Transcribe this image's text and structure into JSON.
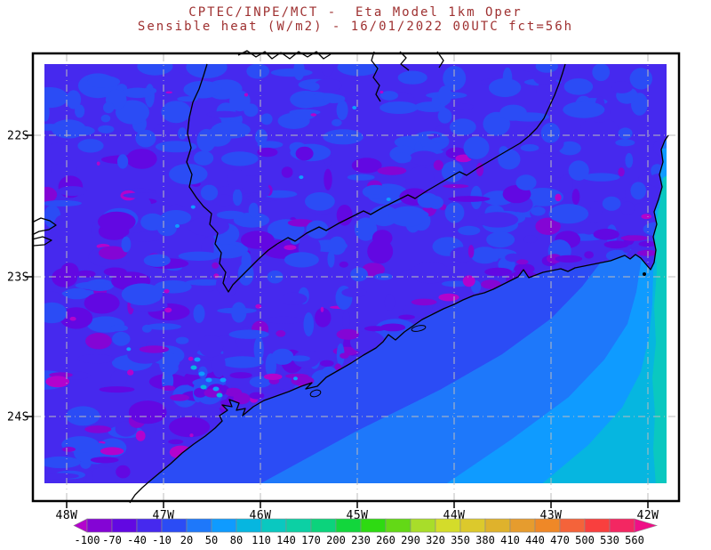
{
  "page": {
    "background": "#ffffff"
  },
  "title": {
    "line1": "CPTEC/INPE/MCT -  Eta Model 1km Oper",
    "line2": "Sensible heat (W/m2) - 16/01/2022 00UTC fct=56h",
    "color": "#9e3030"
  },
  "chart_data": {
    "type": "heatmap",
    "title": "CPTEC/INPE/MCT -  Eta Model 1km Oper",
    "subtitle": "Sensible heat (W/m2) - 16/01/2022 00UTC fct=56h",
    "institution": "CPTEC/INPE/MCT",
    "model": "Eta Model 1km Oper",
    "variable": "Sensible heat",
    "unit": "W/m2",
    "valid_time": "16/01/2022 00UTC",
    "forecast": "fct=56h",
    "projection": "lat-lon map of southeastern Brazil coast",
    "x_tick_labels": [
      "48W",
      "47W",
      "46W",
      "45W",
      "44W",
      "43W",
      "42W"
    ],
    "y_tick_labels": [
      "22S",
      "23S",
      "24S"
    ],
    "grid_style": "gray dash-dot graticule at 1 degree spacing",
    "colorbar": {
      "orientation": "horizontal",
      "levels": [
        -100,
        -70,
        -40,
        -10,
        20,
        50,
        80,
        110,
        140,
        170,
        200,
        230,
        260,
        290,
        320,
        350,
        380,
        410,
        440,
        470,
        500,
        530,
        560
      ],
      "labels": [
        "-100",
        "-70",
        "-40",
        "-10",
        "20",
        "50",
        "80",
        "110",
        "140",
        "170",
        "200",
        "230",
        "260",
        "290",
        "320",
        "350",
        "380",
        "410",
        "440",
        "470",
        "500",
        "530",
        "560"
      ],
      "colors": [
        "#b303cd",
        "#8405d5",
        "#6208e2",
        "#4629ee",
        "#2b4cf5",
        "#1e78fa",
        "#0f9bff",
        "#06b6e0",
        "#0ac8c0",
        "#0cd0a4",
        "#0cd37c",
        "#12d63c",
        "#2eda12",
        "#63d916",
        "#a8dd2a",
        "#d4dc2a",
        "#dcc92c",
        "#dfb22c",
        "#e69c2e",
        "#ef8827",
        "#f4633a",
        "#f93f3e",
        "#f32762",
        "#ef0f87"
      ],
      "below_min_arrow": true,
      "above_max_arrow": true
    },
    "field_regions": [
      {
        "region": "land (most of domain, nighttime)",
        "value_wm2": "-40 to 20"
      },
      {
        "region": "coastal mountain patches",
        "value_wm2": "-100 to -40"
      },
      {
        "region": "scattered dark magenta speckles",
        "value_wm2": "below -100"
      },
      {
        "region": "small bright speckles near Sao Paulo city",
        "value_wm2": "50 to 110"
      },
      {
        "region": "nearshore ocean",
        "value_wm2": "-10 to 20"
      },
      {
        "region": "open ocean toward southeast corner",
        "value_wm2": "20 to 140"
      }
    ]
  },
  "frame": {
    "color": "#000000"
  },
  "grid": {
    "color": "#bcbcbc"
  },
  "labels": {
    "color": "#000000"
  }
}
